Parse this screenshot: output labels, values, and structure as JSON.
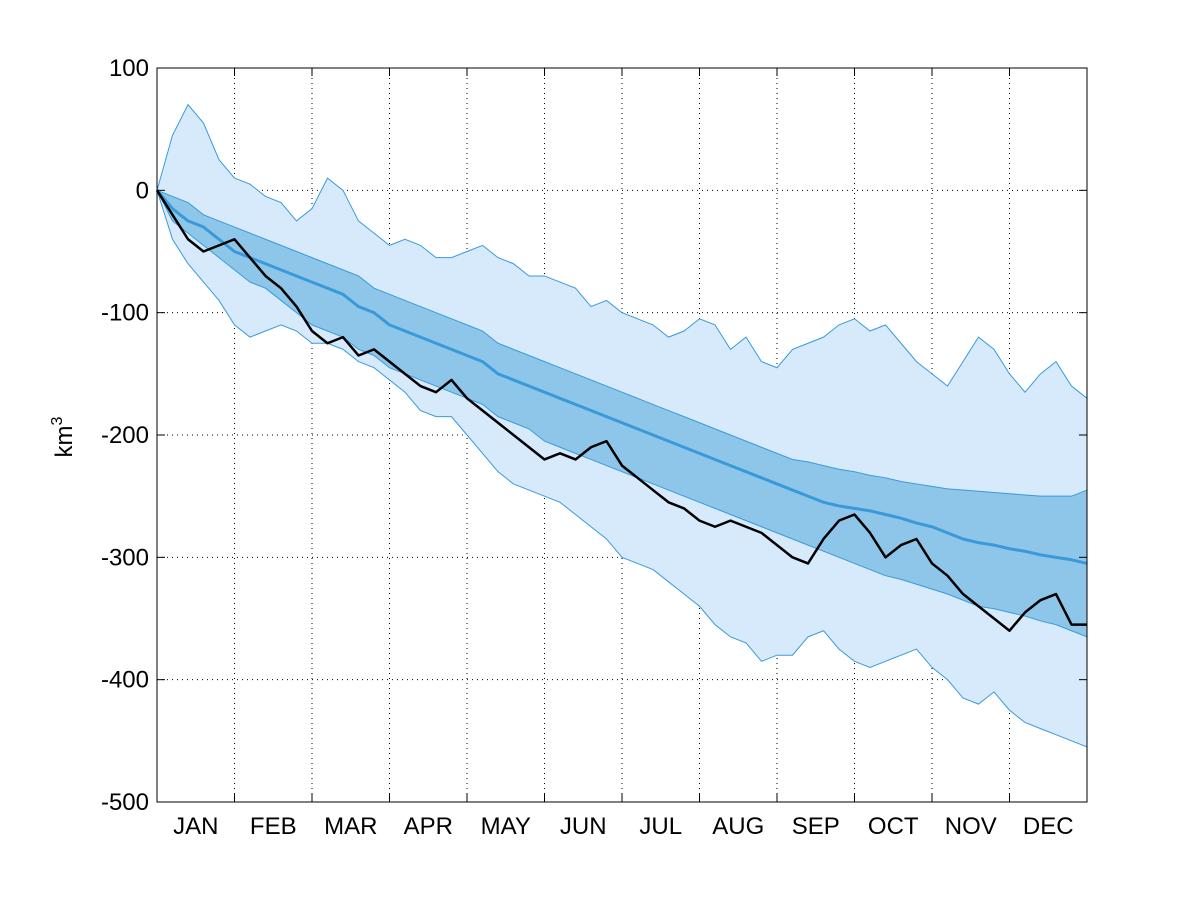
{
  "chart_data": {
    "type": "area",
    "title": "",
    "xlabel": "",
    "ylabel": "km",
    "ylabel_superscript": "3",
    "yticks": [
      "100",
      "0",
      "-100",
      "-200",
      "-300",
      "-400",
      "-500"
    ],
    "ylim": [
      -500,
      100
    ],
    "xlim": [
      0,
      12
    ],
    "xticklabels": [
      "JAN",
      "FEB",
      "MAR",
      "APR",
      "MAY",
      "JUN",
      "JUL",
      "AUG",
      "SEP",
      "OCT",
      "NOV",
      "DEC"
    ],
    "grid": true,
    "colors": {
      "outer_band": "#d6eafc",
      "inner_band": "#8ec6ea",
      "band_edge": "#3a9ad9",
      "median_line": "#3a9ad9",
      "observed_line": "#000000"
    },
    "series": [
      {
        "x": [
          0,
          0.2,
          0.4,
          0.6,
          0.8,
          1.0,
          1.2,
          1.4,
          1.6,
          1.8,
          2.0,
          2.2,
          2.4,
          2.6,
          2.8,
          3.0,
          3.2,
          3.4,
          3.6,
          3.8,
          4.0,
          4.2,
          4.4,
          4.6,
          4.8,
          5.0,
          5.2,
          5.4,
          5.6,
          5.8,
          6.0,
          6.2,
          6.4,
          6.6,
          6.8,
          7.0,
          7.2,
          7.4,
          7.6,
          7.8,
          8.0,
          8.2,
          8.4,
          8.6,
          8.8,
          9.0,
          9.2,
          9.4,
          9.6,
          9.8,
          10.0,
          10.2,
          10.4,
          10.6,
          10.8,
          11.0,
          11.2,
          11.4,
          11.6,
          11.8,
          12.0
        ],
        "upper": [
          0,
          45,
          70,
          55,
          25,
          10,
          5,
          -5,
          -10,
          -25,
          -15,
          10,
          0,
          -25,
          -35,
          -45,
          -40,
          -45,
          -55,
          -55,
          -50,
          -45,
          -55,
          -60,
          -70,
          -70,
          -75,
          -80,
          -95,
          -90,
          -100,
          -105,
          -110,
          -120,
          -115,
          -105,
          -110,
          -130,
          -120,
          -140,
          -145,
          -130,
          -125,
          -120,
          -110,
          -105,
          -115,
          -110,
          -125,
          -140,
          -150,
          -160,
          -140,
          -120,
          -130,
          -150,
          -165,
          -150,
          -140,
          -160,
          -170
        ],
        "upper_inner": [
          0,
          -5,
          -10,
          -20,
          -25,
          -30,
          -35,
          -40,
          -45,
          -50,
          -55,
          -60,
          -65,
          -70,
          -80,
          -85,
          -90,
          -95,
          -100,
          -105,
          -110,
          -115,
          -125,
          -130,
          -135,
          -140,
          -145,
          -150,
          -155,
          -160,
          -165,
          -170,
          -175,
          -180,
          -185,
          -190,
          -195,
          -200,
          -205,
          -210,
          -215,
          -220,
          -222,
          -225,
          -228,
          -230,
          -233,
          -235,
          -238,
          -240,
          -242,
          -244,
          -245,
          -246,
          -247,
          -248,
          -249,
          -250,
          -250,
          -250,
          -245
        ],
        "median": [
          0,
          -15,
          -25,
          -30,
          -40,
          -50,
          -55,
          -60,
          -65,
          -70,
          -75,
          -80,
          -85,
          -95,
          -100,
          -110,
          -115,
          -120,
          -125,
          -130,
          -135,
          -140,
          -150,
          -155,
          -160,
          -165,
          -170,
          -175,
          -180,
          -185,
          -190,
          -195,
          -200,
          -205,
          -210,
          -215,
          -220,
          -225,
          -230,
          -235,
          -240,
          -245,
          -250,
          -255,
          -258,
          -260,
          -262,
          -265,
          -268,
          -272,
          -275,
          -280,
          -285,
          -288,
          -290,
          -293,
          -295,
          -298,
          -300,
          -302,
          -305
        ],
        "lower_inner": [
          0,
          -25,
          -35,
          -45,
          -55,
          -65,
          -75,
          -80,
          -90,
          -100,
          -110,
          -115,
          -120,
          -130,
          -135,
          -145,
          -150,
          -155,
          -160,
          -165,
          -170,
          -175,
          -185,
          -190,
          -195,
          -205,
          -210,
          -215,
          -220,
          -225,
          -230,
          -235,
          -240,
          -245,
          -250,
          -255,
          -260,
          -265,
          -270,
          -275,
          -280,
          -285,
          -290,
          -295,
          -300,
          -305,
          -310,
          -315,
          -318,
          -322,
          -326,
          -330,
          -335,
          -340,
          -342,
          -345,
          -348,
          -352,
          -355,
          -360,
          -365
        ],
        "lower": [
          0,
          -40,
          -60,
          -75,
          -90,
          -110,
          -120,
          -115,
          -110,
          -115,
          -125,
          -125,
          -130,
          -140,
          -145,
          -155,
          -165,
          -180,
          -185,
          -185,
          -200,
          -215,
          -230,
          -240,
          -245,
          -250,
          -255,
          -265,
          -275,
          -285,
          -300,
          -305,
          -310,
          -320,
          -330,
          -340,
          -355,
          -365,
          -370,
          -385,
          -380,
          -380,
          -365,
          -360,
          -375,
          -385,
          -390,
          -385,
          -380,
          -375,
          -390,
          -400,
          -415,
          -420,
          -410,
          -425,
          -435,
          -440,
          -445,
          -450,
          -455
        ],
        "observed": [
          0,
          -20,
          -40,
          -50,
          -45,
          -40,
          -55,
          -70,
          -80,
          -95,
          -115,
          -125,
          -120,
          -135,
          -130,
          -140,
          -150,
          -160,
          -165,
          -155,
          -170,
          -180,
          -190,
          -200,
          -210,
          -220,
          -215,
          -220,
          -210,
          -205,
          -225,
          -235,
          -245,
          -255,
          -260,
          -270,
          -275,
          -270,
          -275,
          -280,
          -290,
          -300,
          -305,
          -285,
          -270,
          -265,
          -280,
          -300,
          -290,
          -285,
          -305,
          -315,
          -330,
          -340,
          -350,
          -360,
          -345,
          -335,
          -330,
          -355,
          -355
        ]
      }
    ]
  }
}
